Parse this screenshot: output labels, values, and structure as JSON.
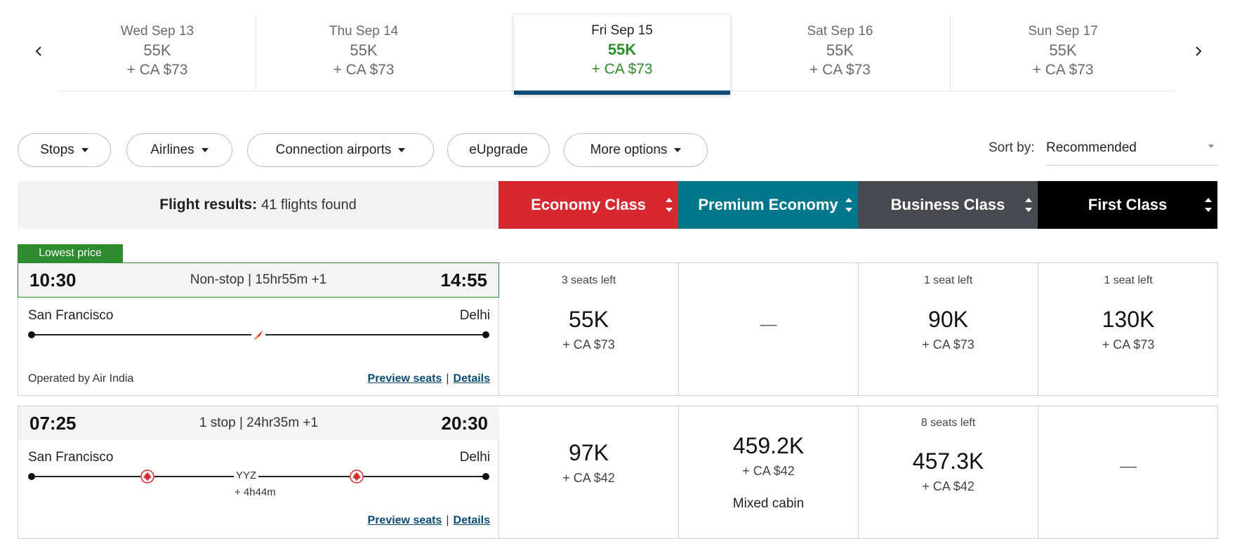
{
  "date_strip": {
    "dates": [
      {
        "date": "Wed Sep 13",
        "points": "55K",
        "tax": "+ CA $73"
      },
      {
        "date": "Thu Sep 14",
        "points": "55K",
        "tax": "+ CA $73"
      },
      {
        "date": "Fri Sep 15",
        "points": "55K",
        "tax": "+ CA $73",
        "selected": true
      },
      {
        "date": "Sat Sep 16",
        "points": "55K",
        "tax": "+ CA $73"
      },
      {
        "date": "Sun Sep 17",
        "points": "55K",
        "tax": "+ CA $73"
      }
    ],
    "prev_icon": "chevron-left-icon",
    "next_icon": "chevron-right-icon"
  },
  "filters": {
    "stops": "Stops",
    "airlines": "Airlines",
    "connection_airports": "Connection airports",
    "eupgrade": "eUpgrade",
    "more_options": "More options"
  },
  "sort": {
    "label": "Sort by:",
    "value": "Recommended"
  },
  "results": {
    "label": "Flight results:",
    "count": "41 flights found"
  },
  "cabins": [
    {
      "name": "Economy Class",
      "color": "#d8282f"
    },
    {
      "name": "Premium Economy",
      "color": "#00778a"
    },
    {
      "name": "Business Class",
      "color": "#474a50"
    },
    {
      "name": "First Class",
      "color": "#000000"
    }
  ],
  "colors": {
    "accent_green": "#2e8b2e",
    "link_blue": "#0b4a75",
    "brand_red": "#d8282f"
  },
  "flights": [
    {
      "badge": "Lowest price",
      "depart": "10:30",
      "summary": "Non-stop | 15hr55m +1",
      "arrive": "14:55",
      "origin": "San Francisco",
      "destination": "Delhi",
      "operated_by": "Operated by Air India",
      "preview_seats": "Preview seats",
      "details": "Details",
      "fares": [
        {
          "seats": "3 seats left",
          "points": "55K",
          "tax": "+ CA $73"
        },
        {
          "dash": "—"
        },
        {
          "seats": "1 seat left",
          "points": "90K",
          "tax": "+ CA $73"
        },
        {
          "seats": "1 seat left",
          "points": "130K",
          "tax": "+ CA $73"
        }
      ]
    },
    {
      "depart": "07:25",
      "summary": "1 stop | 24hr35m +1",
      "arrive": "20:30",
      "origin": "San Francisco",
      "destination": "Delhi",
      "connection": "YYZ",
      "layover": "+ 4h44m",
      "preview_seats": "Preview seats",
      "details": "Details",
      "fares": [
        {
          "points": "97K",
          "tax": "+ CA $42"
        },
        {
          "points": "459.2K",
          "tax": "+ CA $42",
          "note": "Mixed cabin"
        },
        {
          "seats": "8 seats left",
          "points": "457.3K",
          "tax": "+ CA $42"
        },
        {
          "dash": "—"
        }
      ]
    }
  ]
}
